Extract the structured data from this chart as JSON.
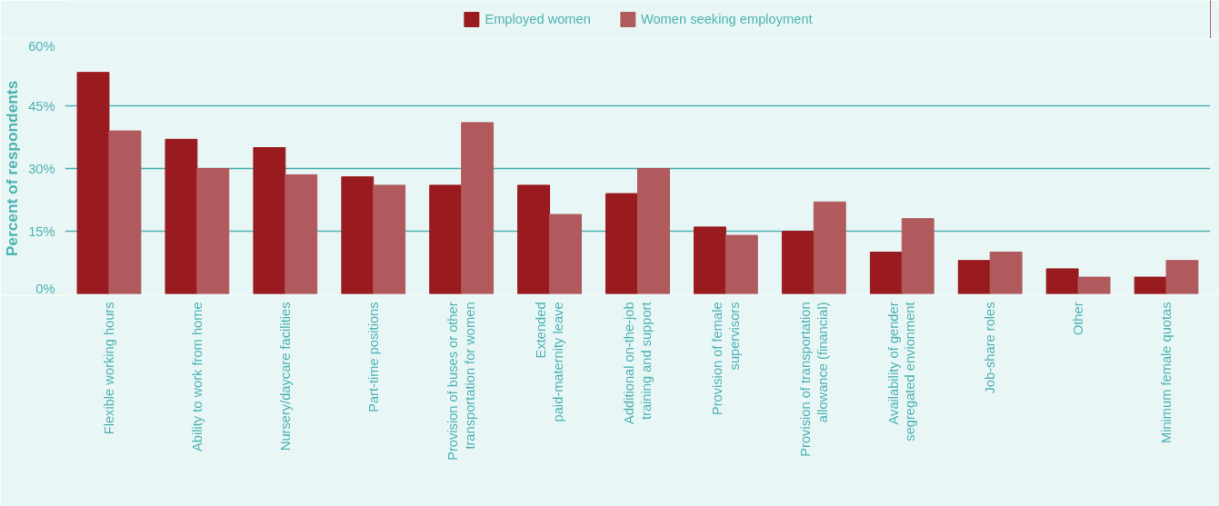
{
  "chart_data": {
    "type": "bar",
    "ylabel": "Percent of respondents",
    "categories": [
      "Flexible working hours",
      "Ability to work from home",
      "Nursery/daycare facilities",
      "Part-time positions",
      "Provision of buses or other\ntransportation for women",
      "Extended\npaid-maternity leave",
      "Additional on-the-job\ntraining and support",
      "Provision of female\nsupervisors",
      "Provision of transportation\nallowance (financial)",
      "Availability of gender\nsegregated envionment",
      "Job-share roles",
      "Other",
      "Minimum female quotas"
    ],
    "series": [
      {
        "name": "Employed women",
        "color": "#9a1b1f",
        "values": [
          53,
          37,
          35,
          28,
          26,
          26,
          24,
          16,
          15,
          10,
          8,
          6,
          4
        ]
      },
      {
        "name": "Women seeking employment",
        "color": "#b05a5e",
        "values": [
          39,
          30,
          28.5,
          26,
          41,
          19,
          30,
          14,
          22,
          18,
          10,
          4,
          8
        ]
      }
    ],
    "ylim": [
      0,
      60
    ],
    "yticks": [
      {
        "value": 0,
        "label": "0%"
      },
      {
        "value": 15,
        "label": "15%"
      },
      {
        "value": 30,
        "label": "30%"
      },
      {
        "value": 45,
        "label": "45%"
      },
      {
        "value": 60,
        "label": "60%"
      }
    ],
    "grid": "y",
    "legend": "top"
  }
}
